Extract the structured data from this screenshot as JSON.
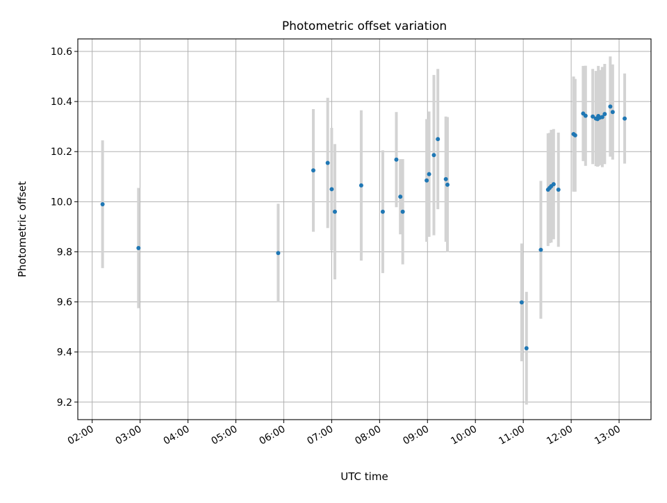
{
  "chart_data": {
    "type": "scatter",
    "title": "Photometric offset variation",
    "xlabel": "UTC time",
    "ylabel": "Photometric offset",
    "xlim": [
      "01:42",
      "13:40"
    ],
    "ylim": [
      9.13,
      10.65
    ],
    "x_ticks": [
      "02:00",
      "03:00",
      "04:00",
      "05:00",
      "06:00",
      "07:00",
      "08:00",
      "09:00",
      "10:00",
      "11:00",
      "12:00",
      "13:00"
    ],
    "y_ticks": [
      "9.2",
      "9.4",
      "9.6",
      "9.8",
      "10.0",
      "10.2",
      "10.4",
      "10.6"
    ],
    "grid": true,
    "colors": {
      "point": "#1f77b4",
      "errorbar": "#d3d3d3",
      "grid": "#b0b0b0"
    },
    "points": [
      {
        "x": "02:13",
        "y": 9.99,
        "err": 0.255
      },
      {
        "x": "02:58",
        "y": 9.815,
        "err": 0.24
      },
      {
        "x": "05:53",
        "y": 9.795,
        "err": 0.197
      },
      {
        "x": "06:37",
        "y": 10.125,
        "err": 0.245
      },
      {
        "x": "06:55",
        "y": 10.155,
        "err": 0.26
      },
      {
        "x": "07:00",
        "y": 10.05,
        "err": 0.245
      },
      {
        "x": "07:04",
        "y": 9.96,
        "err": 0.27
      },
      {
        "x": "07:37",
        "y": 10.065,
        "err": 0.3
      },
      {
        "x": "08:04",
        "y": 9.96,
        "err": 0.245
      },
      {
        "x": "08:21",
        "y": 10.168,
        "err": 0.19
      },
      {
        "x": "08:26",
        "y": 10.02,
        "err": 0.15
      },
      {
        "x": "08:29",
        "y": 9.96,
        "err": 0.21
      },
      {
        "x": "08:59",
        "y": 10.085,
        "err": 0.245
      },
      {
        "x": "09:02",
        "y": 10.11,
        "err": 0.25
      },
      {
        "x": "09:08",
        "y": 10.186,
        "err": 0.32
      },
      {
        "x": "09:13",
        "y": 10.25,
        "err": 0.28
      },
      {
        "x": "09:23",
        "y": 10.09,
        "err": 0.25
      },
      {
        "x": "09:25",
        "y": 10.068,
        "err": 0.27
      },
      {
        "x": "10:58",
        "y": 9.598,
        "err": 0.235
      },
      {
        "x": "11:04",
        "y": 9.415,
        "err": 0.225
      },
      {
        "x": "11:22",
        "y": 9.808,
        "err": 0.275
      },
      {
        "x": "11:31",
        "y": 10.048,
        "err": 0.225
      },
      {
        "x": "11:33",
        "y": 10.055,
        "err": 0.22
      },
      {
        "x": "11:35",
        "y": 10.062,
        "err": 0.225
      },
      {
        "x": "11:38",
        "y": 10.07,
        "err": 0.22
      },
      {
        "x": "11:44",
        "y": 10.048,
        "err": 0.228
      },
      {
        "x": "12:03",
        "y": 10.27,
        "err": 0.23
      },
      {
        "x": "12:05",
        "y": 10.265,
        "err": 0.225
      },
      {
        "x": "12:15",
        "y": 10.352,
        "err": 0.19
      },
      {
        "x": "12:18",
        "y": 10.343,
        "err": 0.2
      },
      {
        "x": "12:27",
        "y": 10.34,
        "err": 0.19
      },
      {
        "x": "12:31",
        "y": 10.332,
        "err": 0.19
      },
      {
        "x": "12:33",
        "y": 10.33,
        "err": 0.19
      },
      {
        "x": "12:34",
        "y": 10.342,
        "err": 0.2
      },
      {
        "x": "12:36",
        "y": 10.336,
        "err": 0.19
      },
      {
        "x": "12:39",
        "y": 10.338,
        "err": 0.2
      },
      {
        "x": "12:42",
        "y": 10.35,
        "err": 0.2
      },
      {
        "x": "12:49",
        "y": 10.38,
        "err": 0.2
      },
      {
        "x": "12:52",
        "y": 10.358,
        "err": 0.19
      },
      {
        "x": "13:07",
        "y": 10.332,
        "err": 0.18
      }
    ]
  }
}
